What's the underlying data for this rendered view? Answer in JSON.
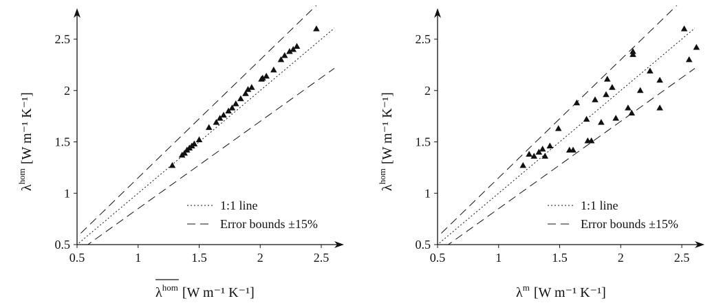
{
  "colors": {
    "ink": "#111111",
    "background": "#ffffff"
  },
  "chart_data": [
    {
      "type": "scatter",
      "xlabel": {
        "symbol": "λ",
        "superscript": "hom",
        "overline": true,
        "units": "[W m⁻¹ K⁻¹]"
      },
      "ylabel": {
        "symbol": "λ",
        "superscript": "hom",
        "units": "[W m⁻¹ K⁻¹]"
      },
      "xlim": [
        0.5,
        2.8
      ],
      "ylim": [
        0.5,
        2.8
      ],
      "xticks": [
        "0.5",
        "1",
        "1.5",
        "2",
        "2.5"
      ],
      "yticks": [
        "0.5",
        "1",
        "1.5",
        "2",
        "2.5"
      ],
      "grid": false,
      "legend_position": "bottom-right",
      "legend": [
        {
          "label": "1:1 line",
          "style": "dotted"
        },
        {
          "label": "Error bounds ±15%",
          "style": "dashed"
        }
      ],
      "lines": {
        "identity_slope": 1,
        "error_fraction": 0.15
      },
      "marker": "triangle",
      "points": [
        [
          1.28,
          1.27
        ],
        [
          1.36,
          1.37
        ],
        [
          1.38,
          1.39
        ],
        [
          1.4,
          1.42
        ],
        [
          1.42,
          1.44
        ],
        [
          1.44,
          1.46
        ],
        [
          1.46,
          1.48
        ],
        [
          1.5,
          1.52
        ],
        [
          1.58,
          1.64
        ],
        [
          1.64,
          1.69
        ],
        [
          1.67,
          1.73
        ],
        [
          1.7,
          1.76
        ],
        [
          1.74,
          1.8
        ],
        [
          1.77,
          1.83
        ],
        [
          1.8,
          1.87
        ],
        [
          1.84,
          1.92
        ],
        [
          1.88,
          1.97
        ],
        [
          1.9,
          2.01
        ],
        [
          1.93,
          2.03
        ],
        [
          2.01,
          2.11
        ],
        [
          2.02,
          2.12
        ],
        [
          2.05,
          2.14
        ],
        [
          2.11,
          2.2
        ],
        [
          2.17,
          2.3
        ],
        [
          2.2,
          2.34
        ],
        [
          2.24,
          2.38
        ],
        [
          2.27,
          2.4
        ],
        [
          2.3,
          2.43
        ],
        [
          2.46,
          2.6
        ]
      ]
    },
    {
      "type": "scatter",
      "xlabel": {
        "symbol": "λ",
        "superscript": "m",
        "overline": false,
        "units": "[W m⁻¹ K⁻¹]"
      },
      "ylabel": {
        "symbol": "λ",
        "superscript": "hom",
        "units": "[W m⁻¹ K⁻¹]"
      },
      "xlim": [
        0.5,
        2.8
      ],
      "ylim": [
        0.5,
        2.8
      ],
      "xticks": [
        "0.5",
        "1",
        "1.5",
        "2",
        "2.5"
      ],
      "yticks": [
        "0.5",
        "1",
        "1.5",
        "2",
        "2.5"
      ],
      "grid": false,
      "legend_position": "bottom-right",
      "legend": [
        {
          "label": "1:1 line",
          "style": "dotted"
        },
        {
          "label": "Error bounds ±15%",
          "style": "dashed"
        }
      ],
      "lines": {
        "identity_slope": 1,
        "error_fraction": 0.15
      },
      "marker": "triangle",
      "points": [
        [
          1.2,
          1.27
        ],
        [
          1.25,
          1.38
        ],
        [
          1.29,
          1.36
        ],
        [
          1.33,
          1.4
        ],
        [
          1.36,
          1.43
        ],
        [
          1.38,
          1.36
        ],
        [
          1.42,
          1.46
        ],
        [
          1.49,
          1.63
        ],
        [
          1.58,
          1.42
        ],
        [
          1.61,
          1.42
        ],
        [
          1.64,
          1.88
        ],
        [
          1.72,
          1.72
        ],
        [
          1.73,
          1.51
        ],
        [
          1.76,
          1.51
        ],
        [
          1.79,
          1.91
        ],
        [
          1.84,
          1.69
        ],
        [
          1.88,
          1.96
        ],
        [
          1.89,
          2.11
        ],
        [
          1.93,
          2.03
        ],
        [
          1.96,
          1.73
        ],
        [
          2.06,
          1.83
        ],
        [
          2.09,
          1.78
        ],
        [
          2.1,
          2.38
        ],
        [
          2.1,
          2.35
        ],
        [
          2.16,
          2.0
        ],
        [
          2.24,
          2.19
        ],
        [
          2.32,
          2.1
        ],
        [
          2.32,
          1.83
        ],
        [
          2.52,
          2.6
        ],
        [
          2.56,
          2.3
        ],
        [
          2.62,
          2.42
        ]
      ]
    }
  ]
}
